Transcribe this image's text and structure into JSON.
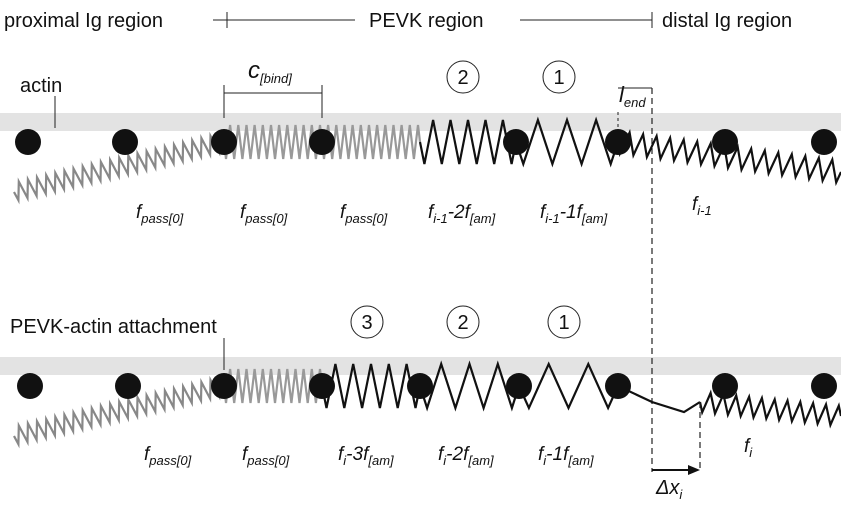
{
  "header": {
    "proximal": "proximal Ig region",
    "pevk": "PEVK region",
    "distal": "distal Ig region"
  },
  "top": {
    "actin_label": "actin",
    "cbind": {
      "main": "c",
      "sub": "[bind]"
    },
    "lend": {
      "main": "l",
      "sub": "end"
    },
    "circles": [
      "2",
      "1"
    ],
    "forces": [
      {
        "main": "f",
        "sub": "pass[0]"
      },
      {
        "main": "f",
        "sub": "pass[0]"
      },
      {
        "main": "f",
        "sub": "pass[0]"
      },
      {
        "main": "f",
        "sub": "i-1",
        "main2": "-2f",
        "sub2": "[am]"
      },
      {
        "main": "f",
        "sub": "i-1",
        "main2": "-1f",
        "sub2": "[am]"
      },
      {
        "main": "f",
        "sub": "i-1"
      }
    ]
  },
  "bottom": {
    "attach_label": "PEVK-actin attachment",
    "circles": [
      "3",
      "2",
      "1"
    ],
    "forces": [
      {
        "main": "f",
        "sub": "pass[0]"
      },
      {
        "main": "f",
        "sub": "pass[0]"
      },
      {
        "main": "f",
        "sub": "i",
        "main2": "-3f",
        "sub2": "[am]"
      },
      {
        "main": "f",
        "sub": "i",
        "main2": "-2f",
        "sub2": "[am]"
      },
      {
        "main": "f",
        "sub": "i",
        "main2": "-1f",
        "sub2": "[am]"
      },
      {
        "main": "f",
        "sub": "i"
      }
    ],
    "dx": {
      "main": "Δx",
      "sub": "i"
    }
  }
}
